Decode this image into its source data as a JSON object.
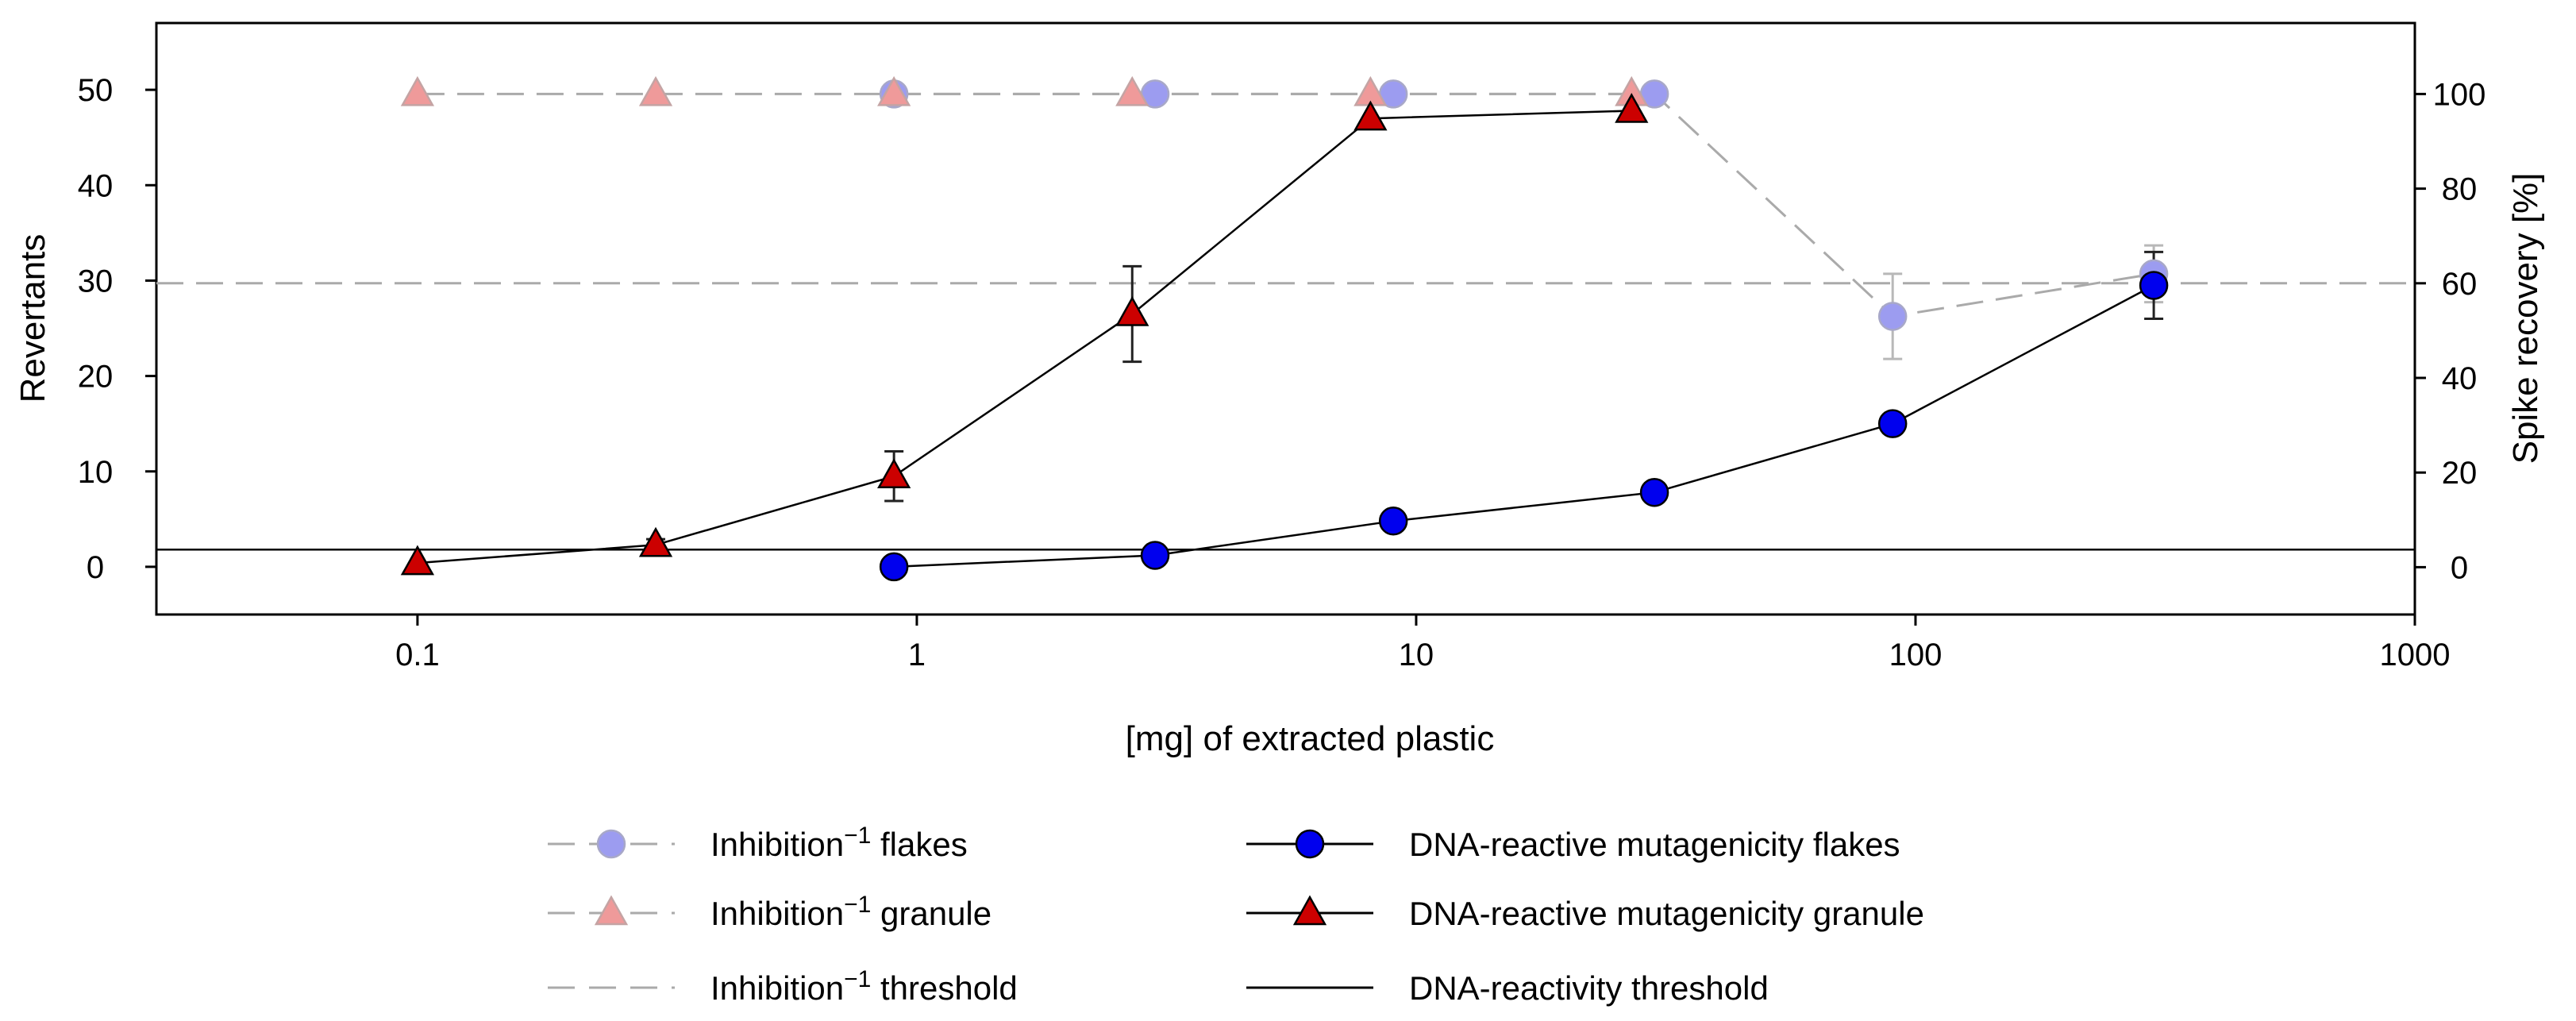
{
  "chart_data": {
    "type": "line",
    "xscale": "log",
    "xlabel": "[mg] of extracted plastic",
    "ylabel": "Revertants",
    "y2label": "Spike recovery [%]",
    "xlim": [
      0.03,
      1000
    ],
    "ylim": [
      -5,
      57
    ],
    "y2lim": [
      -10,
      115
    ],
    "xticks": [
      0.1,
      1,
      10,
      100,
      1000
    ],
    "xtick_labels": [
      "0.1",
      "1",
      "10",
      "100",
      "1000"
    ],
    "yticks": [
      0,
      10,
      20,
      30,
      40,
      50
    ],
    "y2ticks": [
      0,
      20,
      40,
      60,
      80,
      100
    ],
    "inhibition_threshold_pct": 60,
    "dna_reactivity_threshold": 1.8,
    "grid": false,
    "series": [
      {
        "key": "inh_flakes",
        "name": "Inhibition flakes",
        "axis": "right",
        "marker": "circle",
        "line": "dashed",
        "color": "#9c9cf0",
        "stroke": "#a8a8c8",
        "x": [
          0.9,
          3,
          9,
          30,
          90,
          300
        ],
        "y": [
          100,
          100,
          100,
          100,
          53,
          62
        ],
        "err": [
          0,
          0,
          0,
          0,
          9,
          6
        ]
      },
      {
        "key": "inh_granule",
        "name": "Inhibition granule",
        "axis": "right",
        "marker": "triangle",
        "line": "dashed",
        "color": "#ef9a9a",
        "stroke": "#c4a4a4",
        "x": [
          0.1,
          0.3,
          0.9,
          2.7,
          8.1,
          27
        ],
        "y": [
          100,
          100,
          100,
          100,
          100,
          100
        ],
        "err": [
          0,
          0,
          0,
          0,
          0,
          0
        ]
      },
      {
        "key": "dna_flakes",
        "name": "DNA-reactive mutagenicity flakes",
        "axis": "left",
        "marker": "circle",
        "line": "solid",
        "color": "#0000ee",
        "stroke": "#000000",
        "x": [
          0.9,
          3,
          9,
          30,
          90,
          300
        ],
        "y": [
          0,
          1.2,
          4.8,
          7.8,
          15,
          29.5
        ],
        "err": [
          0,
          0,
          0.9,
          1.0,
          1.0,
          3.5
        ]
      },
      {
        "key": "dna_granule",
        "name": "DNA-reactive mutagenicity granule",
        "axis": "left",
        "marker": "triangle",
        "line": "solid",
        "color": "#cc0000",
        "stroke": "#000000",
        "x": [
          0.1,
          0.3,
          0.9,
          2.7,
          8.1,
          27
        ],
        "y": [
          0.4,
          2.3,
          9.5,
          26.5,
          47,
          47.8
        ],
        "err": [
          0,
          0.6,
          2.6,
          5,
          0,
          0
        ]
      }
    ],
    "legend": [
      {
        "key": "inh_flakes",
        "label": "Inhibition",
        "sup": "−1",
        "suffix": " flakes",
        "marker": "circle",
        "line": "dashed",
        "color": "#9c9cf0",
        "stroke": "#a8a8c8"
      },
      {
        "key": "inh_granule",
        "label": "Inhibition",
        "sup": "−1",
        "suffix": " granule",
        "marker": "triangle",
        "line": "dashed",
        "color": "#ef9a9a",
        "stroke": "#c4a4a4"
      },
      {
        "key": "inh_threshold",
        "label": "Inhibition",
        "sup": "−1",
        "suffix": " threshold",
        "marker": "none",
        "line": "dashed",
        "color": "#aaaaaa",
        "stroke": "#aaaaaa"
      },
      {
        "key": "dna_flakes",
        "label": "DNA-reactive mutagenicity flakes",
        "sup": "",
        "suffix": "",
        "marker": "circle",
        "line": "solid",
        "color": "#0000ee",
        "stroke": "#000000"
      },
      {
        "key": "dna_granule",
        "label": "DNA-reactive mutagenicity granule",
        "sup": "",
        "suffix": "",
        "marker": "triangle",
        "line": "solid",
        "color": "#cc0000",
        "stroke": "#000000"
      },
      {
        "key": "dna_threshold",
        "label": "DNA-reactivity threshold",
        "sup": "",
        "suffix": "",
        "marker": "none",
        "line": "solid",
        "color": "#000000",
        "stroke": "#000000"
      }
    ]
  }
}
